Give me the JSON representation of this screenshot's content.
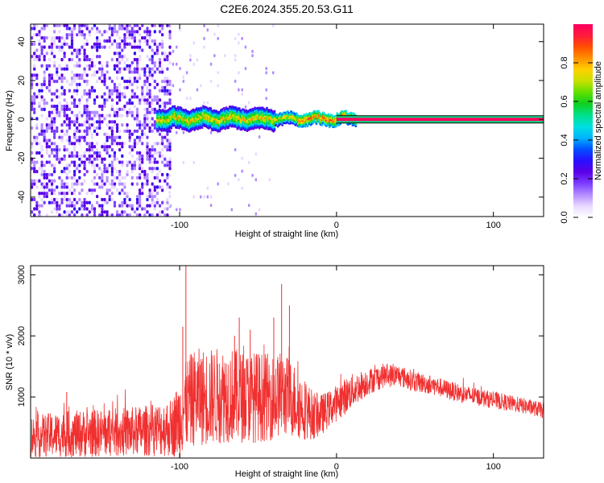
{
  "title": "C2E6.2024.355.20.53.G11",
  "chart_data": [
    {
      "type": "heatmap",
      "xlabel": "Height of straight line (km)",
      "ylabel": "Frequency (Hz)",
      "xlim": [
        -195,
        132
      ],
      "ylim": [
        -50,
        49
      ],
      "xticks": [
        -100,
        0,
        100
      ],
      "xtick_labels": [
        "-100",
        "0",
        "100"
      ],
      "yticks": [
        -40,
        -20,
        0,
        20,
        40
      ],
      "ytick_labels": [
        "-40",
        "-20",
        "0",
        "20",
        "40"
      ],
      "colorbar": {
        "label": "Normalized spectral amplitude",
        "range": [
          0,
          1
        ],
        "ticks": [
          0.0,
          0.2,
          0.4,
          0.6,
          0.8
        ],
        "tick_labels": [
          "0.0",
          "0.2",
          "0.4",
          "0.6",
          "0.8"
        ],
        "colors": [
          "#ffffff",
          "#e8d8ff",
          "#b48cff",
          "#7a3cff",
          "#5a00e6",
          "#2a10ff",
          "#0050ff",
          "#00b4ff",
          "#00e0e0",
          "#00e08a",
          "#10d020",
          "#60e000",
          "#c8e000",
          "#ffd000",
          "#ff9000",
          "#ff5000",
          "#ff1a3c",
          "#ff0060"
        ]
      },
      "features": {
        "noise_region_x": [
          -195,
          -107
        ],
        "sparse_region_x": [
          -107,
          -40
        ],
        "signal_band_frequency": 0,
        "signal_band_x": [
          -115,
          12
        ],
        "steady_line_x": [
          0,
          132
        ],
        "steady_line_amplitude": 1.0
      }
    },
    {
      "type": "line",
      "xlabel": "Height of straight line (km)",
      "ylabel": "SNR (10 * v/v)",
      "xlim": [
        -195,
        132
      ],
      "ylim": [
        0,
        3150
      ],
      "xticks": [
        -100,
        0,
        100
      ],
      "xtick_labels": [
        "-100",
        "0",
        "100"
      ],
      "yticks": [
        1000,
        2000,
        3000
      ],
      "ytick_labels": [
        "1000",
        "2000",
        "3000"
      ],
      "color": "#f03030",
      "envelope": {
        "x": [
          -195,
          -180,
          -160,
          -140,
          -120,
          -105,
          -100,
          -95,
          -90,
          -80,
          -70,
          -60,
          -50,
          -40,
          -35,
          -30,
          -25,
          -20,
          -15,
          -10,
          -5,
          0,
          5,
          10,
          20,
          30,
          40,
          50,
          60,
          80,
          100,
          120,
          132
        ],
        "y": [
          350,
          380,
          400,
          420,
          450,
          500,
          650,
          900,
          1000,
          1000,
          1050,
          1000,
          1000,
          1000,
          1050,
          1000,
          900,
          800,
          700,
          700,
          800,
          900,
          1000,
          1100,
          1250,
          1350,
          1350,
          1250,
          1200,
          1050,
          950,
          850,
          780
        ],
        "spread": [
          350,
          370,
          390,
          400,
          420,
          480,
          650,
          750,
          800,
          800,
          800,
          750,
          750,
          700,
          700,
          650,
          600,
          500,
          400,
          350,
          300,
          300,
          300,
          280,
          220,
          200,
          180,
          170,
          160,
          150,
          140,
          130,
          130
        ]
      },
      "spikes": [
        {
          "x": -96,
          "y": 3150
        },
        {
          "x": -98,
          "y": 2150
        },
        {
          "x": -35,
          "y": 2850
        },
        {
          "x": -30,
          "y": 2500
        },
        {
          "x": -40,
          "y": 2300
        },
        {
          "x": -62,
          "y": 2300
        },
        {
          "x": -55,
          "y": 2100
        },
        {
          "x": -172,
          "y": 1080
        },
        {
          "x": -65,
          "y": 2000
        }
      ]
    }
  ]
}
